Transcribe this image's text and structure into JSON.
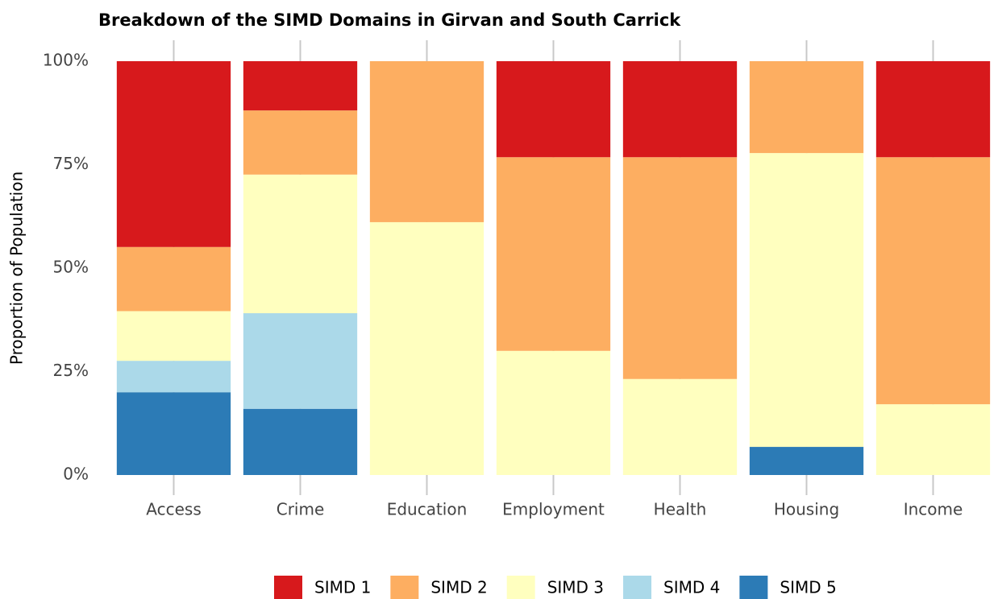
{
  "chart_data": {
    "type": "stacked_bar",
    "title": "Breakdown of the SIMD Domains in Girvan and South Carrick",
    "y_label": "Proportion of Population",
    "categories": [
      "Access",
      "Crime",
      "Education",
      "Employment",
      "Health",
      "Housing",
      "Income"
    ],
    "series": [
      {
        "name": "SIMD 1",
        "color": "#d7191c",
        "values": [
          44.9,
          11.9,
          0,
          23.2,
          23.2,
          0,
          23.2
        ]
      },
      {
        "name": "SIMD 2",
        "color": "#fdae61",
        "values": [
          15.5,
          15.5,
          38.9,
          46.8,
          53.6,
          22.2,
          59.7
        ]
      },
      {
        "name": "SIMD 3",
        "color": "#ffffbf",
        "values": [
          12,
          33.5,
          61.1,
          30,
          23.2,
          71,
          17.1
        ]
      },
      {
        "name": "SIMD 4",
        "color": "#abd9e9",
        "values": [
          7.6,
          23.1,
          0,
          0,
          0,
          0,
          0
        ]
      },
      {
        "name": "SIMD 5",
        "color": "#2c7bb6",
        "values": [
          20,
          16,
          0,
          0,
          0,
          6.8,
          0
        ]
      }
    ],
    "ylim": [
      0,
      100
    ],
    "yticks": [
      {
        "value": 0,
        "label": "0%"
      },
      {
        "value": 25,
        "label": "25%"
      },
      {
        "value": 50,
        "label": "50%"
      },
      {
        "value": 75,
        "label": "75%"
      },
      {
        "value": 100,
        "label": "100%"
      }
    ],
    "legend": "bottom"
  }
}
